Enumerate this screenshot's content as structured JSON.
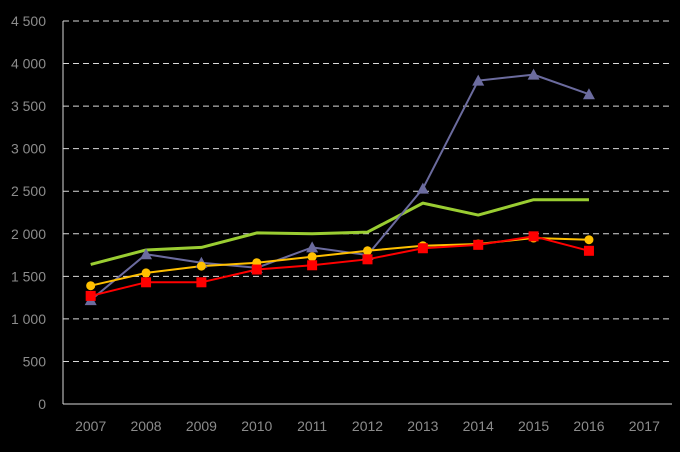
{
  "chart_data": {
    "type": "line",
    "categories": [
      "2007",
      "2008",
      "2009",
      "2010",
      "2011",
      "2012",
      "2013",
      "2014",
      "2015",
      "2016",
      "2017"
    ],
    "y_ticks": [
      "0",
      "500",
      "1 000",
      "1 500",
      "2 000",
      "2 500",
      "3 000",
      "3 500",
      "4 000",
      "4 500"
    ],
    "ylim": [
      0,
      4500
    ],
    "grid": true,
    "legend": "none",
    "series": [
      {
        "color": "#9ACD32",
        "marker": "none",
        "values": [
          1640,
          1810,
          1840,
          2010,
          2000,
          2020,
          2360,
          2220,
          2400,
          2400,
          null
        ]
      },
      {
        "color": "#6B6B9E",
        "marker": "triangle",
        "values": [
          1220,
          1760,
          1660,
          1600,
          1840,
          1750,
          2530,
          3800,
          3870,
          3640,
          null
        ]
      },
      {
        "color": "#FFC000",
        "marker": "circle",
        "values": [
          1390,
          1540,
          1620,
          1660,
          1730,
          1800,
          1860,
          1880,
          1950,
          1930,
          null
        ]
      },
      {
        "color": "#FF0000",
        "marker": "square",
        "values": [
          1270,
          1430,
          1430,
          1580,
          1630,
          1700,
          1830,
          1870,
          1970,
          1800,
          null
        ]
      }
    ]
  }
}
